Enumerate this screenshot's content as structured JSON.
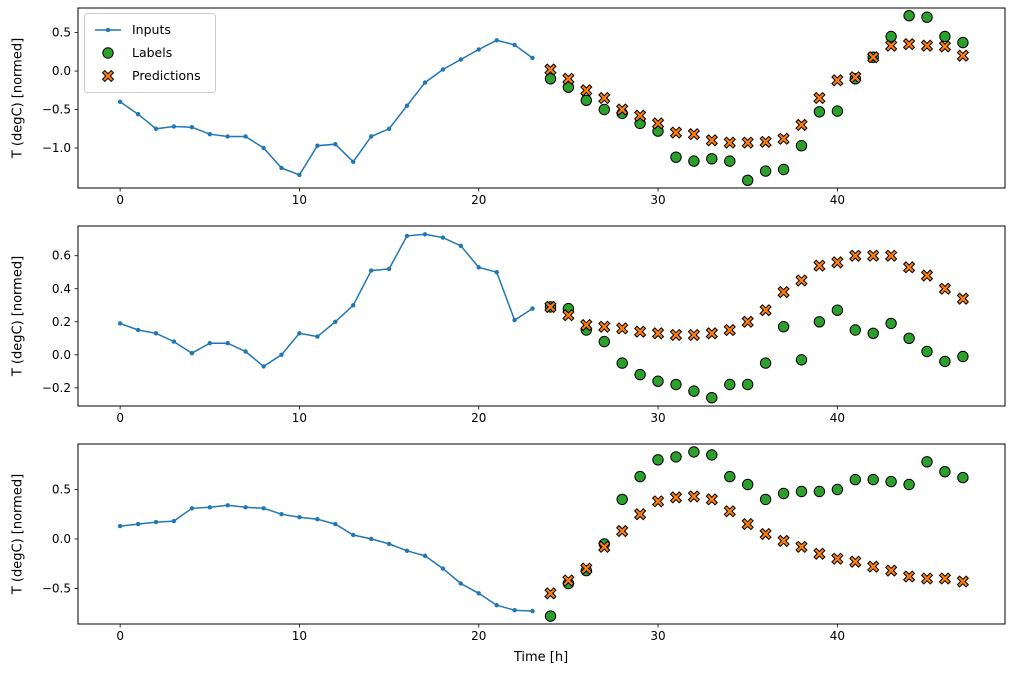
{
  "figure": {
    "background": "#ffffff",
    "xlabel": "Time [h]",
    "ylabel": "T (degC) [normed]"
  },
  "legend": {
    "position": "upper-left-subplot-1",
    "items": [
      {
        "label": "Inputs",
        "marker": "line-dot",
        "color": "#1f77b4",
        "edge_color": "#1f77b4"
      },
      {
        "label": "Labels",
        "marker": "circle",
        "color": "#2ca02c",
        "edge_color": "#000000"
      },
      {
        "label": "Predictions",
        "marker": "x",
        "color": "#ff7f0e",
        "edge_color": "#000000"
      }
    ]
  },
  "chart_data": [
    {
      "type": "line",
      "title": "",
      "xlabel": "",
      "ylabel": "T (degC) [normed]",
      "xlim": [
        -2.35,
        49.35
      ],
      "ylim": [
        -1.52,
        0.82
      ],
      "xticks": [
        0,
        10,
        20,
        30,
        40
      ],
      "yticks": [
        -1.0,
        -0.5,
        0.0,
        0.5
      ],
      "grid": false,
      "series": [
        {
          "name": "Inputs",
          "marker": "line-dot",
          "color": "#1f77b4",
          "x": [
            0,
            1,
            2,
            3,
            4,
            5,
            6,
            7,
            8,
            9,
            10,
            11,
            12,
            13,
            14,
            15,
            16,
            17,
            18,
            19,
            20,
            21,
            22,
            23
          ],
          "y": [
            -0.4,
            -0.56,
            -0.75,
            -0.72,
            -0.73,
            -0.82,
            -0.85,
            -0.85,
            -1.0,
            -1.26,
            -1.35,
            -0.97,
            -0.95,
            -1.18,
            -0.85,
            -0.75,
            -0.45,
            -0.15,
            0.02,
            0.15,
            0.28,
            0.4,
            0.34,
            0.17
          ]
        },
        {
          "name": "Labels",
          "marker": "circle",
          "color": "#2ca02c",
          "edge_color": "#000000",
          "x": [
            24,
            25,
            26,
            27,
            28,
            29,
            30,
            31,
            32,
            33,
            34,
            35,
            36,
            37,
            38,
            39,
            40,
            41,
            42,
            43,
            44,
            45,
            46,
            47
          ],
          "y": [
            -0.1,
            -0.21,
            -0.38,
            -0.5,
            -0.55,
            -0.68,
            -0.78,
            -1.12,
            -1.17,
            -1.14,
            -1.17,
            -1.42,
            -1.3,
            -1.28,
            -0.97,
            -0.53,
            -0.52,
            -0.1,
            0.18,
            0.45,
            0.72,
            0.7,
            0.45,
            0.37
          ]
        },
        {
          "name": "Predictions",
          "marker": "x",
          "color": "#ff7f0e",
          "edge_color": "#000000",
          "x": [
            24,
            25,
            26,
            27,
            28,
            29,
            30,
            31,
            32,
            33,
            34,
            35,
            36,
            37,
            38,
            39,
            40,
            41,
            42,
            43,
            44,
            45,
            46,
            47
          ],
          "y": [
            0.02,
            -0.1,
            -0.25,
            -0.35,
            -0.5,
            -0.58,
            -0.68,
            -0.8,
            -0.82,
            -0.9,
            -0.93,
            -0.93,
            -0.92,
            -0.88,
            -0.7,
            -0.35,
            -0.12,
            -0.08,
            0.18,
            0.33,
            0.35,
            0.33,
            0.32,
            0.2
          ]
        }
      ]
    },
    {
      "type": "line",
      "title": "",
      "xlabel": "",
      "ylabel": "T (degC) [normed]",
      "xlim": [
        -2.35,
        49.35
      ],
      "ylim": [
        -0.31,
        0.78
      ],
      "xticks": [
        0,
        10,
        20,
        30,
        40
      ],
      "yticks": [
        -0.2,
        0.0,
        0.2,
        0.4,
        0.6
      ],
      "grid": false,
      "series": [
        {
          "name": "Inputs",
          "marker": "line-dot",
          "color": "#1f77b4",
          "x": [
            0,
            1,
            2,
            3,
            4,
            5,
            6,
            7,
            8,
            9,
            10,
            11,
            12,
            13,
            14,
            15,
            16,
            17,
            18,
            19,
            20,
            21,
            22,
            23
          ],
          "y": [
            0.19,
            0.15,
            0.13,
            0.08,
            0.01,
            0.07,
            0.07,
            0.02,
            -0.07,
            0.0,
            0.13,
            0.11,
            0.2,
            0.3,
            0.51,
            0.52,
            0.72,
            0.73,
            0.71,
            0.66,
            0.53,
            0.5,
            0.21,
            0.28
          ]
        },
        {
          "name": "Labels",
          "marker": "circle",
          "color": "#2ca02c",
          "edge_color": "#000000",
          "x": [
            24,
            25,
            26,
            27,
            28,
            29,
            30,
            31,
            32,
            33,
            34,
            35,
            36,
            37,
            38,
            39,
            40,
            41,
            42,
            43,
            44,
            45,
            46,
            47
          ],
          "y": [
            0.29,
            0.28,
            0.15,
            0.08,
            -0.05,
            -0.12,
            -0.16,
            -0.18,
            -0.22,
            -0.26,
            -0.18,
            -0.18,
            -0.05,
            0.17,
            -0.03,
            0.2,
            0.27,
            0.15,
            0.13,
            0.19,
            0.1,
            0.02,
            -0.04,
            -0.01
          ]
        },
        {
          "name": "Predictions",
          "marker": "x",
          "color": "#ff7f0e",
          "edge_color": "#000000",
          "x": [
            24,
            25,
            26,
            27,
            28,
            29,
            30,
            31,
            32,
            33,
            34,
            35,
            36,
            37,
            38,
            39,
            40,
            41,
            42,
            43,
            44,
            45,
            46,
            47
          ],
          "y": [
            0.29,
            0.24,
            0.18,
            0.17,
            0.16,
            0.14,
            0.13,
            0.12,
            0.12,
            0.13,
            0.15,
            0.2,
            0.27,
            0.38,
            0.45,
            0.54,
            0.56,
            0.6,
            0.6,
            0.6,
            0.53,
            0.48,
            0.4,
            0.34
          ]
        }
      ]
    },
    {
      "type": "line",
      "title": "",
      "xlabel": "Time [h]",
      "ylabel": "T (degC) [normed]",
      "xlim": [
        -2.35,
        49.35
      ],
      "ylim": [
        -0.86,
        0.96
      ],
      "xticks": [
        0,
        10,
        20,
        30,
        40
      ],
      "yticks": [
        -0.5,
        0.0,
        0.5
      ],
      "grid": false,
      "series": [
        {
          "name": "Inputs",
          "marker": "line-dot",
          "color": "#1f77b4",
          "x": [
            0,
            1,
            2,
            3,
            4,
            5,
            6,
            7,
            8,
            9,
            10,
            11,
            12,
            13,
            14,
            15,
            16,
            17,
            18,
            19,
            20,
            21,
            22,
            23
          ],
          "y": [
            0.13,
            0.15,
            0.17,
            0.18,
            0.31,
            0.32,
            0.34,
            0.32,
            0.31,
            0.25,
            0.22,
            0.2,
            0.15,
            0.04,
            0.0,
            -0.05,
            -0.12,
            -0.17,
            -0.3,
            -0.45,
            -0.55,
            -0.67,
            -0.72,
            -0.73
          ]
        },
        {
          "name": "Labels",
          "marker": "circle",
          "color": "#2ca02c",
          "edge_color": "#000000",
          "x": [
            24,
            25,
            26,
            27,
            28,
            29,
            30,
            31,
            32,
            33,
            34,
            35,
            36,
            37,
            38,
            39,
            40,
            41,
            42,
            43,
            44,
            45,
            46,
            47
          ],
          "y": [
            -0.78,
            -0.45,
            -0.32,
            -0.05,
            0.4,
            0.63,
            0.8,
            0.83,
            0.88,
            0.85,
            0.63,
            0.55,
            0.4,
            0.46,
            0.48,
            0.48,
            0.5,
            0.6,
            0.6,
            0.58,
            0.55,
            0.78,
            0.68,
            0.62
          ]
        },
        {
          "name": "Predictions",
          "marker": "x",
          "color": "#ff7f0e",
          "edge_color": "#000000",
          "x": [
            24,
            25,
            26,
            27,
            28,
            29,
            30,
            31,
            32,
            33,
            34,
            35,
            36,
            37,
            38,
            39,
            40,
            41,
            42,
            43,
            44,
            45,
            46,
            47
          ],
          "y": [
            -0.55,
            -0.42,
            -0.3,
            -0.08,
            0.08,
            0.25,
            0.38,
            0.42,
            0.43,
            0.4,
            0.28,
            0.15,
            0.05,
            -0.02,
            -0.08,
            -0.15,
            -0.2,
            -0.23,
            -0.28,
            -0.32,
            -0.38,
            -0.4,
            -0.4,
            -0.43
          ]
        }
      ]
    }
  ]
}
